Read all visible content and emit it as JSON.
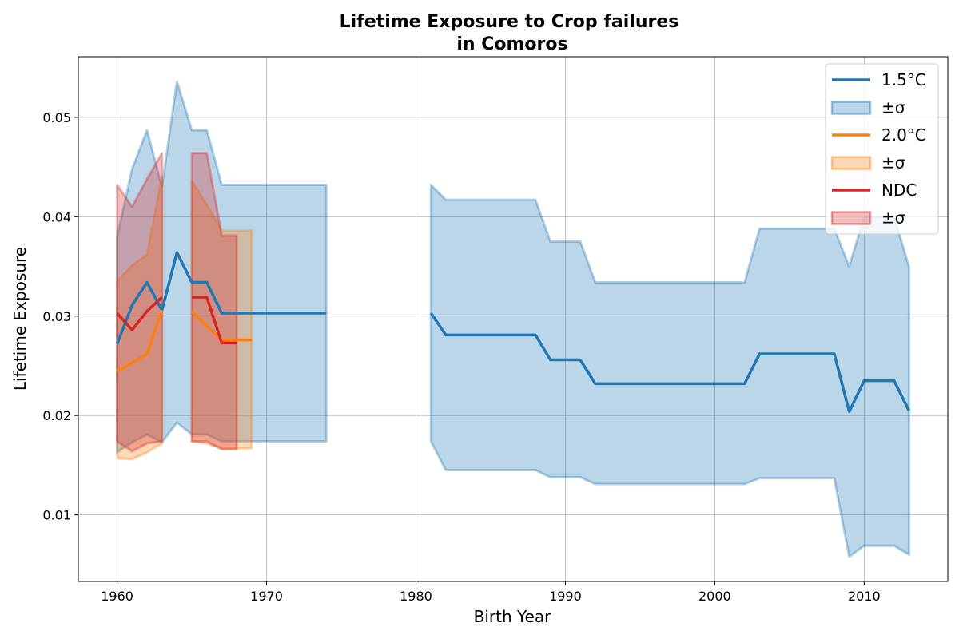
{
  "chart_data": {
    "type": "line",
    "title_line1": "Lifetime Exposure to Crop failures",
    "title_line2": "in Comoros",
    "xlabel": "Birth Year",
    "ylabel": "Lifetime Exposure",
    "xlim": [
      1957.4,
      2015.6
    ],
    "ylim": [
      0.0033,
      0.0561
    ],
    "xticks": [
      1960,
      1970,
      1980,
      1990,
      2000,
      2010
    ],
    "yticks": [
      0.01,
      0.02,
      0.03,
      0.04,
      0.05
    ],
    "ytick_labels": [
      "0.01",
      "0.02",
      "0.03",
      "0.04",
      "0.05"
    ],
    "grid": true,
    "legend_position": "upper right",
    "series": [
      {
        "name": "1.5°C",
        "band_label": "±σ",
        "color": "#1f77b4",
        "segments": [
          {
            "x": [
              1960,
              1961,
              1962,
              1963,
              1964,
              1965,
              1966,
              1967,
              1968,
              1969,
              1970,
              1971,
              1972,
              1973,
              1974
            ],
            "mean": [
              0.0272,
              0.0311,
              0.0334,
              0.0306,
              0.0364,
              0.0334,
              0.0334,
              0.0303,
              0.0303,
              0.0303,
              0.0303,
              0.0303,
              0.0303,
              0.0303,
              0.0303
            ],
            "upper": [
              0.038,
              0.0448,
              0.0487,
              0.043,
              0.0536,
              0.0487,
              0.0487,
              0.0432,
              0.0432,
              0.0432,
              0.0432,
              0.0432,
              0.0432,
              0.0432,
              0.0432
            ],
            "lower": [
              0.0163,
              0.0173,
              0.0181,
              0.0173,
              0.0193,
              0.0181,
              0.0181,
              0.0174,
              0.0174,
              0.0174,
              0.0174,
              0.0174,
              0.0174,
              0.0174,
              0.0174
            ]
          },
          {
            "x": [
              1981,
              1982,
              1983,
              1984,
              1985,
              1986,
              1987,
              1988,
              1989,
              1990,
              1991,
              1992,
              1993,
              1994,
              1995,
              1996,
              1997,
              1998,
              1999,
              2000,
              2001,
              2002,
              2003,
              2004,
              2005,
              2006,
              2007,
              2008,
              2009,
              2010,
              2011,
              2012,
              2013
            ],
            "mean": [
              0.0303,
              0.0281,
              0.0281,
              0.0281,
              0.0281,
              0.0281,
              0.0281,
              0.0281,
              0.0256,
              0.0256,
              0.0256,
              0.0232,
              0.0232,
              0.0232,
              0.0232,
              0.0232,
              0.0232,
              0.0232,
              0.0232,
              0.0232,
              0.0232,
              0.0232,
              0.0262,
              0.0262,
              0.0262,
              0.0262,
              0.0262,
              0.0262,
              0.0204,
              0.0235,
              0.0235,
              0.0235,
              0.0205
            ],
            "upper": [
              0.0432,
              0.0417,
              0.0417,
              0.0417,
              0.0417,
              0.0417,
              0.0417,
              0.0417,
              0.0375,
              0.0375,
              0.0375,
              0.0334,
              0.0334,
              0.0334,
              0.0334,
              0.0334,
              0.0334,
              0.0334,
              0.0334,
              0.0334,
              0.0334,
              0.0334,
              0.0388,
              0.0388,
              0.0388,
              0.0388,
              0.0388,
              0.0388,
              0.035,
              0.04,
              0.04,
              0.04,
              0.035
            ],
            "lower": [
              0.0174,
              0.0145,
              0.0145,
              0.0145,
              0.0145,
              0.0145,
              0.0145,
              0.0145,
              0.0138,
              0.0138,
              0.0138,
              0.0131,
              0.0131,
              0.0131,
              0.0131,
              0.0131,
              0.0131,
              0.0131,
              0.0131,
              0.0131,
              0.0131,
              0.0131,
              0.0137,
              0.0137,
              0.0137,
              0.0137,
              0.0137,
              0.0137,
              0.0058,
              0.0069,
              0.0069,
              0.0069,
              0.006
            ]
          }
        ]
      },
      {
        "name": "2.0°C",
        "band_label": "±σ",
        "color": "#ff7f0e",
        "segments": [
          {
            "x": [
              1960,
              1961,
              1962,
              1963
            ],
            "mean": [
              0.0245,
              0.0253,
              0.0262,
              0.0306
            ],
            "upper": [
              0.0335,
              0.0351,
              0.0362,
              0.044
            ],
            "lower": [
              0.0157,
              0.0156,
              0.0163,
              0.0172
            ]
          },
          {
            "x": [
              1965,
              1966,
              1967,
              1968,
              1969
            ],
            "mean": [
              0.0305,
              0.029,
              0.0276,
              0.0276,
              0.0276
            ],
            "upper": [
              0.0436,
              0.0412,
              0.0386,
              0.0386,
              0.0386
            ],
            "lower": [
              0.0174,
              0.0172,
              0.0167,
              0.0167,
              0.0167
            ]
          }
        ]
      },
      {
        "name": "NDC",
        "band_label": "±σ",
        "color": "#d62728",
        "segments": [
          {
            "x": [
              1960,
              1961,
              1962,
              1963
            ],
            "mean": [
              0.0303,
              0.0286,
              0.0305,
              0.0319
            ],
            "upper": [
              0.0432,
              0.041,
              0.0438,
              0.0464
            ],
            "lower": [
              0.0174,
              0.0164,
              0.0172,
              0.0174
            ]
          },
          {
            "x": [
              1965,
              1966,
              1967,
              1968
            ],
            "mean": [
              0.0319,
              0.0319,
              0.0273,
              0.0273
            ],
            "upper": [
              0.0464,
              0.0464,
              0.0381,
              0.0381
            ],
            "lower": [
              0.0174,
              0.0174,
              0.0166,
              0.0166
            ]
          }
        ]
      }
    ]
  }
}
